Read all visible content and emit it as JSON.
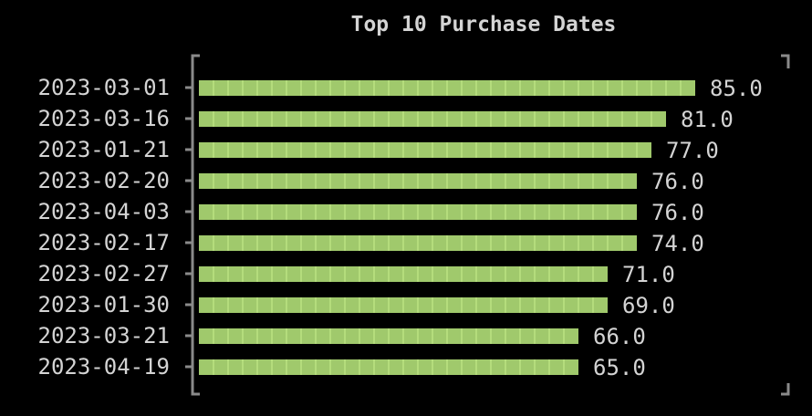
{
  "chart_data": {
    "type": "bar",
    "orientation": "horizontal",
    "title": "Top 10 Purchase Dates",
    "categories": [
      "2023-03-01",
      "2023-03-16",
      "2023-01-21",
      "2023-02-20",
      "2023-04-03",
      "2023-02-17",
      "2023-02-27",
      "2023-01-30",
      "2023-03-21",
      "2023-04-19"
    ],
    "values": [
      85.0,
      81.0,
      77.0,
      76.0,
      76.0,
      74.0,
      71.0,
      69.0,
      66.0,
      65.0
    ],
    "data_labels": [
      "85.0",
      "81.0",
      "77.0",
      "76.0",
      "76.0",
      "74.0",
      "71.0",
      "69.0",
      "66.0",
      "65.0"
    ],
    "xlabel": "",
    "ylabel": "",
    "grid": false,
    "legend": "none",
    "colors": {
      "bar": "#a0c96c",
      "bar_segment": "#c8ef8c",
      "text": "#d4d4d4",
      "axis": "#8a8a8a",
      "background": "#000000"
    }
  }
}
